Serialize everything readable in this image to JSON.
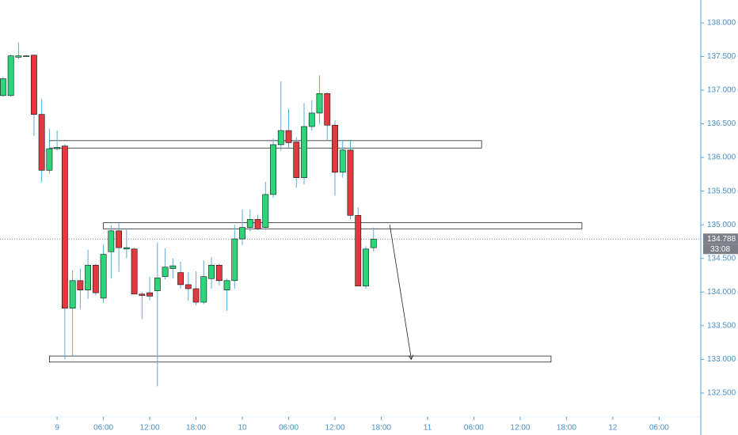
{
  "chart_data": {
    "type": "candlestick",
    "x": [
      -7,
      -6,
      -5,
      -4,
      -3,
      -2,
      -1,
      0,
      1,
      2,
      3,
      4,
      5,
      6,
      7,
      8,
      9,
      10,
      11,
      12,
      13,
      14,
      15,
      16,
      17,
      18,
      19,
      20,
      21,
      22,
      23,
      24,
      25,
      26,
      27,
      28,
      29,
      30,
      31,
      32,
      33,
      34,
      35,
      36,
      37,
      38,
      39,
      40,
      41
    ],
    "open": [
      136.92,
      136.92,
      137.49,
      137.51,
      137.52,
      136.64,
      135.81,
      136.13,
      136.17,
      133.76,
      134.17,
      134.03,
      134.4,
      133.91,
      134.6,
      134.91,
      134.64,
      134.64,
      133.97,
      133.99,
      134.02,
      134.23,
      134.35,
      134.29,
      134.11,
      134.05,
      133.85,
      134.2,
      134.4,
      134.03,
      134.17,
      134.79,
      134.96,
      135.08,
      134.96,
      135.45,
      136.19,
      136.4,
      136.23,
      135.7,
      136.46,
      136.66,
      136.95,
      136.48,
      135.78,
      136.11,
      135.14,
      134.09,
      134.66
    ],
    "high": [
      137.2,
      137.53,
      137.71,
      137.52,
      137.53,
      136.87,
      136.43,
      136.4,
      136.2,
      134.32,
      134.35,
      134.63,
      134.42,
      134.7,
      134.99,
      135.02,
      134.94,
      134.66,
      134.0,
      134.23,
      134.74,
      134.65,
      134.5,
      134.45,
      134.3,
      134.31,
      134.47,
      134.52,
      134.42,
      134.2,
      135.0,
      135.23,
      135.23,
      135.15,
      135.64,
      136.28,
      137.13,
      136.72,
      136.3,
      136.81,
      136.85,
      137.22,
      136.97,
      136.55,
      136.25,
      136.25,
      135.26,
      134.68,
      134.96
    ],
    "low": [
      136.9,
      136.9,
      137.46,
      137.5,
      136.32,
      135.63,
      135.76,
      136.1,
      133.0,
      133.05,
      133.74,
      133.9,
      133.95,
      133.84,
      134.2,
      134.3,
      134.5,
      133.97,
      133.6,
      133.88,
      132.6,
      134.19,
      134.2,
      134.05,
      133.87,
      133.8,
      133.82,
      134.05,
      134.1,
      133.72,
      134.05,
      134.7,
      134.9,
      134.92,
      134.92,
      135.4,
      136.1,
      136.15,
      135.55,
      135.6,
      136.4,
      136.5,
      136.25,
      135.43,
      135.7,
      135.08,
      134.09,
      134.05,
      134.6
    ],
    "close": [
      137.17,
      137.51,
      137.51,
      137.51,
      136.64,
      135.81,
      136.13,
      136.15,
      133.76,
      134.17,
      134.03,
      134.4,
      133.99,
      134.56,
      134.91,
      134.66,
      134.66,
      133.97,
      133.95,
      133.94,
      134.21,
      134.37,
      134.39,
      134.11,
      134.05,
      133.85,
      134.23,
      134.4,
      134.17,
      134.17,
      134.79,
      134.96,
      135.08,
      134.94,
      135.45,
      136.19,
      136.4,
      136.22,
      135.7,
      136.46,
      136.66,
      136.95,
      136.48,
      135.78,
      136.11,
      135.14,
      134.09,
      134.64,
      134.788
    ],
    "up_color": "#2ed47a",
    "down_color": "#e0393e",
    "wick_color": "#5aaee0",
    "xlim": [
      -7.4,
      83.4
    ],
    "xticks": [
      {
        "value": 0,
        "label": "9"
      },
      {
        "value": 6,
        "label": "06:00"
      },
      {
        "value": 12,
        "label": "12:00"
      },
      {
        "value": 18,
        "label": "18:00"
      },
      {
        "value": 24,
        "label": "10"
      },
      {
        "value": 30,
        "label": "06:00"
      },
      {
        "value": 36,
        "label": "12:00"
      },
      {
        "value": 42,
        "label": "18:00"
      },
      {
        "value": 48,
        "label": "11"
      },
      {
        "value": 54,
        "label": "06:00"
      },
      {
        "value": 60,
        "label": "12:00"
      },
      {
        "value": 66,
        "label": "18:00"
      },
      {
        "value": 72,
        "label": "12"
      },
      {
        "value": 78,
        "label": "06:00"
      }
    ],
    "ylim": [
      132.17,
      138.34
    ],
    "yticks": [
      {
        "value": 132.5,
        "label": "132.500"
      },
      {
        "value": 133,
        "label": "133.000"
      },
      {
        "value": 133.5,
        "label": "133.500"
      },
      {
        "value": 134,
        "label": "134.000"
      },
      {
        "value": 134.5,
        "label": "134.500"
      },
      {
        "value": 135,
        "label": "135.000"
      },
      {
        "value": 135.5,
        "label": "135.500"
      },
      {
        "value": 136,
        "label": "136.000"
      },
      {
        "value": 136.5,
        "label": "136.500"
      },
      {
        "value": 137,
        "label": "137.000"
      },
      {
        "value": 137.5,
        "label": "137.500"
      },
      {
        "value": 138,
        "label": "138.000"
      }
    ],
    "last_price": 134.788,
    "countdown": "33:08",
    "zones": [
      {
        "x": [
          -1,
          55
        ],
        "y": [
          136.14,
          136.25
        ]
      },
      {
        "x": [
          6,
          68
        ],
        "y": [
          134.94,
          135.03
        ]
      },
      {
        "x": [
          -1,
          64
        ],
        "y": [
          132.96,
          133.05
        ]
      }
    ],
    "arrow": {
      "x": [
        43.1,
        45.9
      ],
      "y": [
        135.0,
        133.0
      ]
    }
  }
}
